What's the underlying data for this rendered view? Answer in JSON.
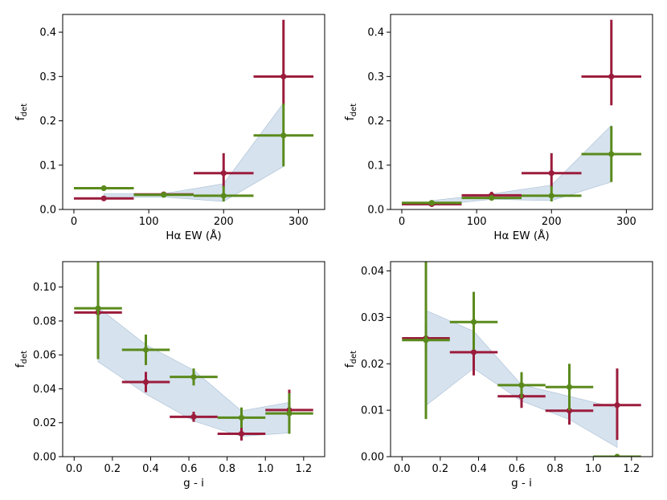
{
  "colors": {
    "red": "#9b1c3c",
    "green": "#5a8a1c",
    "band": "#c8d8e8"
  },
  "chart_data": [
    {
      "type": "scatter",
      "title": "",
      "xlabel": "Hα EW (Å)",
      "ylabel": "f",
      "ylabel_sub": "det",
      "xlim": [
        -15,
        335
      ],
      "ylim": [
        0,
        0.44
      ],
      "xticks": [
        0,
        100,
        200,
        300
      ],
      "xtick_labels": [
        "0",
        "100",
        "200",
        "300"
      ],
      "yticks": [
        0,
        0.1,
        0.2,
        0.3,
        0.4
      ],
      "ytick_labels": [
        "0.0",
        "0.1",
        "0.2",
        "0.3",
        "0.4"
      ],
      "band": {
        "x": [
          40,
          120,
          200,
          280
        ],
        "low": [
          0.027,
          0.028,
          0.018,
          0.097
        ],
        "high": [
          0.036,
          0.036,
          0.058,
          0.24
        ]
      },
      "series": [
        {
          "name": "red",
          "x": [
            40,
            120,
            200,
            280
          ],
          "y": [
            0.025,
            0.034,
            0.082,
            0.3
          ],
          "xerr": [
            40,
            40,
            40,
            40
          ],
          "yerr_low": [
            0.004,
            0.006,
            0.033,
            0.065
          ],
          "yerr_high": [
            0.004,
            0.006,
            0.045,
            0.128
          ]
        },
        {
          "name": "green",
          "x": [
            40,
            120,
            200,
            280
          ],
          "y": [
            0.048,
            0.033,
            0.031,
            0.167
          ],
          "xerr": [
            40,
            40,
            40,
            40
          ],
          "yerr_low": [
            0.003,
            0.006,
            0.013,
            0.07
          ],
          "yerr_high": [
            0.003,
            0.006,
            0.022,
            0.072
          ]
        }
      ]
    },
    {
      "type": "scatter",
      "title": "",
      "xlabel": "Hα EW (Å)",
      "ylabel": "f",
      "ylabel_sub": "det",
      "xlim": [
        -15,
        335
      ],
      "ylim": [
        0,
        0.44
      ],
      "xticks": [
        0,
        100,
        200,
        300
      ],
      "xtick_labels": [
        "0",
        "100",
        "200",
        "300"
      ],
      "yticks": [
        0,
        0.1,
        0.2,
        0.3,
        0.4
      ],
      "ytick_labels": [
        "0.0",
        "0.1",
        "0.2",
        "0.3",
        "0.4"
      ],
      "band": {
        "x": [
          40,
          120,
          200,
          280
        ],
        "low": [
          0.009,
          0.023,
          0.02,
          0.062
        ],
        "high": [
          0.02,
          0.035,
          0.055,
          0.19
        ]
      },
      "series": [
        {
          "name": "red",
          "x": [
            40,
            120,
            200,
            280
          ],
          "y": [
            0.012,
            0.032,
            0.082,
            0.3
          ],
          "xerr": [
            40,
            40,
            40,
            40
          ],
          "yerr_low": [
            0.003,
            0.007,
            0.033,
            0.065
          ],
          "yerr_high": [
            0.003,
            0.008,
            0.045,
            0.128
          ]
        },
        {
          "name": "green",
          "x": [
            40,
            120,
            200,
            280
          ],
          "y": [
            0.015,
            0.026,
            0.031,
            0.125
          ],
          "xerr": [
            40,
            40,
            40,
            40
          ],
          "yerr_low": [
            0.003,
            0.006,
            0.013,
            0.063
          ],
          "yerr_high": [
            0.003,
            0.006,
            0.022,
            0.063
          ]
        }
      ]
    },
    {
      "type": "scatter",
      "title": "",
      "xlabel": "g - i",
      "ylabel": "f",
      "ylabel_sub": "det",
      "xlim": [
        -0.06,
        1.31
      ],
      "ylim": [
        0,
        0.115
      ],
      "xticks": [
        0,
        0.2,
        0.4,
        0.6,
        0.8,
        1.0,
        1.2
      ],
      "xtick_labels": [
        "0.0",
        "0.2",
        "0.4",
        "0.6",
        "0.8",
        "1.0",
        "1.2"
      ],
      "yticks": [
        0,
        0.02,
        0.04,
        0.06,
        0.08,
        0.1
      ],
      "ytick_labels": [
        "0.00",
        "0.02",
        "0.04",
        "0.06",
        "0.08",
        "0.10"
      ],
      "band": {
        "x": [
          0.125,
          0.375,
          0.625,
          0.875,
          1.125
        ],
        "low": [
          0.056,
          0.037,
          0.021,
          0.012,
          0.014
        ],
        "high": [
          0.088,
          0.066,
          0.051,
          0.027,
          0.032
        ]
      },
      "series": [
        {
          "name": "red",
          "x": [
            0.125,
            0.375,
            0.625,
            0.875,
            1.125
          ],
          "y": [
            0.085,
            0.044,
            0.0235,
            0.0135,
            0.0275
          ],
          "xerr": [
            0.125,
            0.125,
            0.125,
            0.125,
            0.125
          ],
          "yerr_low": [
            0.004,
            0.006,
            0.003,
            0.004,
            0.01
          ],
          "yerr_high": [
            0.004,
            0.006,
            0.003,
            0.004,
            0.012
          ]
        },
        {
          "name": "green",
          "x": [
            0.125,
            0.375,
            0.625,
            0.875,
            1.125
          ],
          "y": [
            0.0875,
            0.063,
            0.047,
            0.023,
            0.0255
          ],
          "xerr": [
            0.125,
            0.125,
            0.125,
            0.125,
            0.125
          ],
          "yerr_low": [
            0.03,
            0.009,
            0.005,
            0.006,
            0.012
          ],
          "yerr_high": [
            0.028,
            0.009,
            0.005,
            0.006,
            0.012
          ]
        }
      ]
    },
    {
      "type": "scatter",
      "title": "",
      "xlabel": "g - i",
      "ylabel": "f",
      "ylabel_sub": "det",
      "xlim": [
        -0.06,
        1.31
      ],
      "ylim": [
        0,
        0.042
      ],
      "xticks": [
        0,
        0.2,
        0.4,
        0.6,
        0.8,
        1.0,
        1.2
      ],
      "xtick_labels": [
        "0.0",
        "0.2",
        "0.4",
        "0.6",
        "0.8",
        "1.0",
        "1.2"
      ],
      "yticks": [
        0,
        0.01,
        0.02,
        0.03,
        0.04
      ],
      "ytick_labels": [
        "0.00",
        "0.01",
        "0.02",
        "0.03",
        "0.04"
      ],
      "band": {
        "x": [
          0.125,
          0.375,
          0.625,
          0.875,
          1.125
        ],
        "low": [
          0.011,
          0.019,
          0.012,
          0.008,
          0.002
        ],
        "high": [
          0.0315,
          0.027,
          0.0155,
          0.013,
          0.0105
        ]
      },
      "series": [
        {
          "name": "red",
          "x": [
            0.125,
            0.375,
            0.625,
            0.875,
            1.125
          ],
          "y": [
            0.0255,
            0.0225,
            0.013,
            0.0099,
            0.0111
          ],
          "xerr": [
            0.125,
            0.125,
            0.125,
            0.125,
            0.125
          ],
          "yerr_low": [
            0.003,
            0.005,
            0.0025,
            0.003,
            0.0075
          ],
          "yerr_high": [
            0.003,
            0.005,
            0.0025,
            0.003,
            0.0079
          ]
        },
        {
          "name": "green",
          "x": [
            0.125,
            0.375,
            0.625,
            0.875,
            1.125
          ],
          "y": [
            0.0251,
            0.029,
            0.0154,
            0.015,
            0.0
          ],
          "xerr": [
            0.125,
            0.125,
            0.125,
            0.125,
            0.125
          ],
          "yerr_low": [
            0.017,
            0.006,
            0.0028,
            0.005,
            0.0
          ],
          "yerr_high": [
            0.017,
            0.0065,
            0.0028,
            0.005,
            0.0
          ]
        }
      ]
    }
  ]
}
